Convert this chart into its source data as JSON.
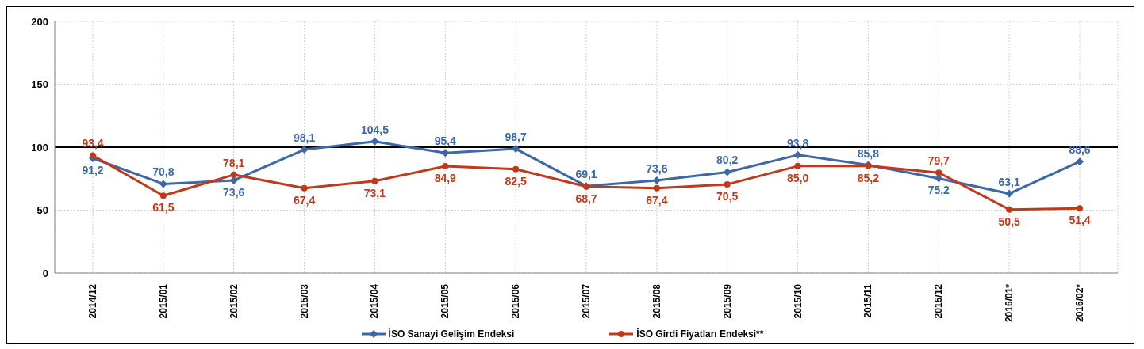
{
  "chart_data": {
    "type": "line",
    "categories": [
      "2014/12",
      "2015/01",
      "2015/02",
      "2015/03",
      "2015/04",
      "2015/05",
      "2015/06",
      "2015/07",
      "2015/08",
      "2015/09",
      "2015/10",
      "2015/11",
      "2015/12",
      "2016/01*",
      "2016/02*"
    ],
    "series": [
      {
        "name": "İSO Sanayi Gelişim Endeksi",
        "color": "#3c68a6",
        "marker": "diamond",
        "values": [
          91.2,
          70.8,
          73.6,
          98.1,
          104.5,
          95.4,
          98.7,
          69.1,
          73.6,
          80.2,
          93.8,
          85.8,
          75.2,
          63.1,
          88.6
        ],
        "value_labels": [
          "91,2",
          "70,8",
          "73,6",
          "98,1",
          "104,5",
          "95,4",
          "98,7",
          "69,1",
          "73,6",
          "80,2",
          "93,8",
          "85,8",
          "75,2",
          "63,1",
          "88,6"
        ]
      },
      {
        "name": "İSO Girdi Fiyatları Endeksi**",
        "color": "#c0391b",
        "marker": "circle",
        "values": [
          93.4,
          61.5,
          78.1,
          67.4,
          73.1,
          84.9,
          82.5,
          68.7,
          67.4,
          70.5,
          85.0,
          85.2,
          79.7,
          50.5,
          51.4
        ],
        "value_labels": [
          "93,4",
          "61,5",
          "78,1",
          "67,4",
          "73,1",
          "84,9",
          "82,5",
          "68,7",
          "67,4",
          "70,5",
          "85,0",
          "85,2",
          "79,7",
          "50,5",
          "51,4"
        ]
      }
    ],
    "ylim": [
      0,
      200
    ],
    "yticks": [
      0,
      50,
      100,
      150,
      200
    ],
    "grid": true,
    "legend": "bottom",
    "ref_lines": [
      {
        "axis": "y",
        "value": 100,
        "color": "#000000"
      }
    ]
  }
}
